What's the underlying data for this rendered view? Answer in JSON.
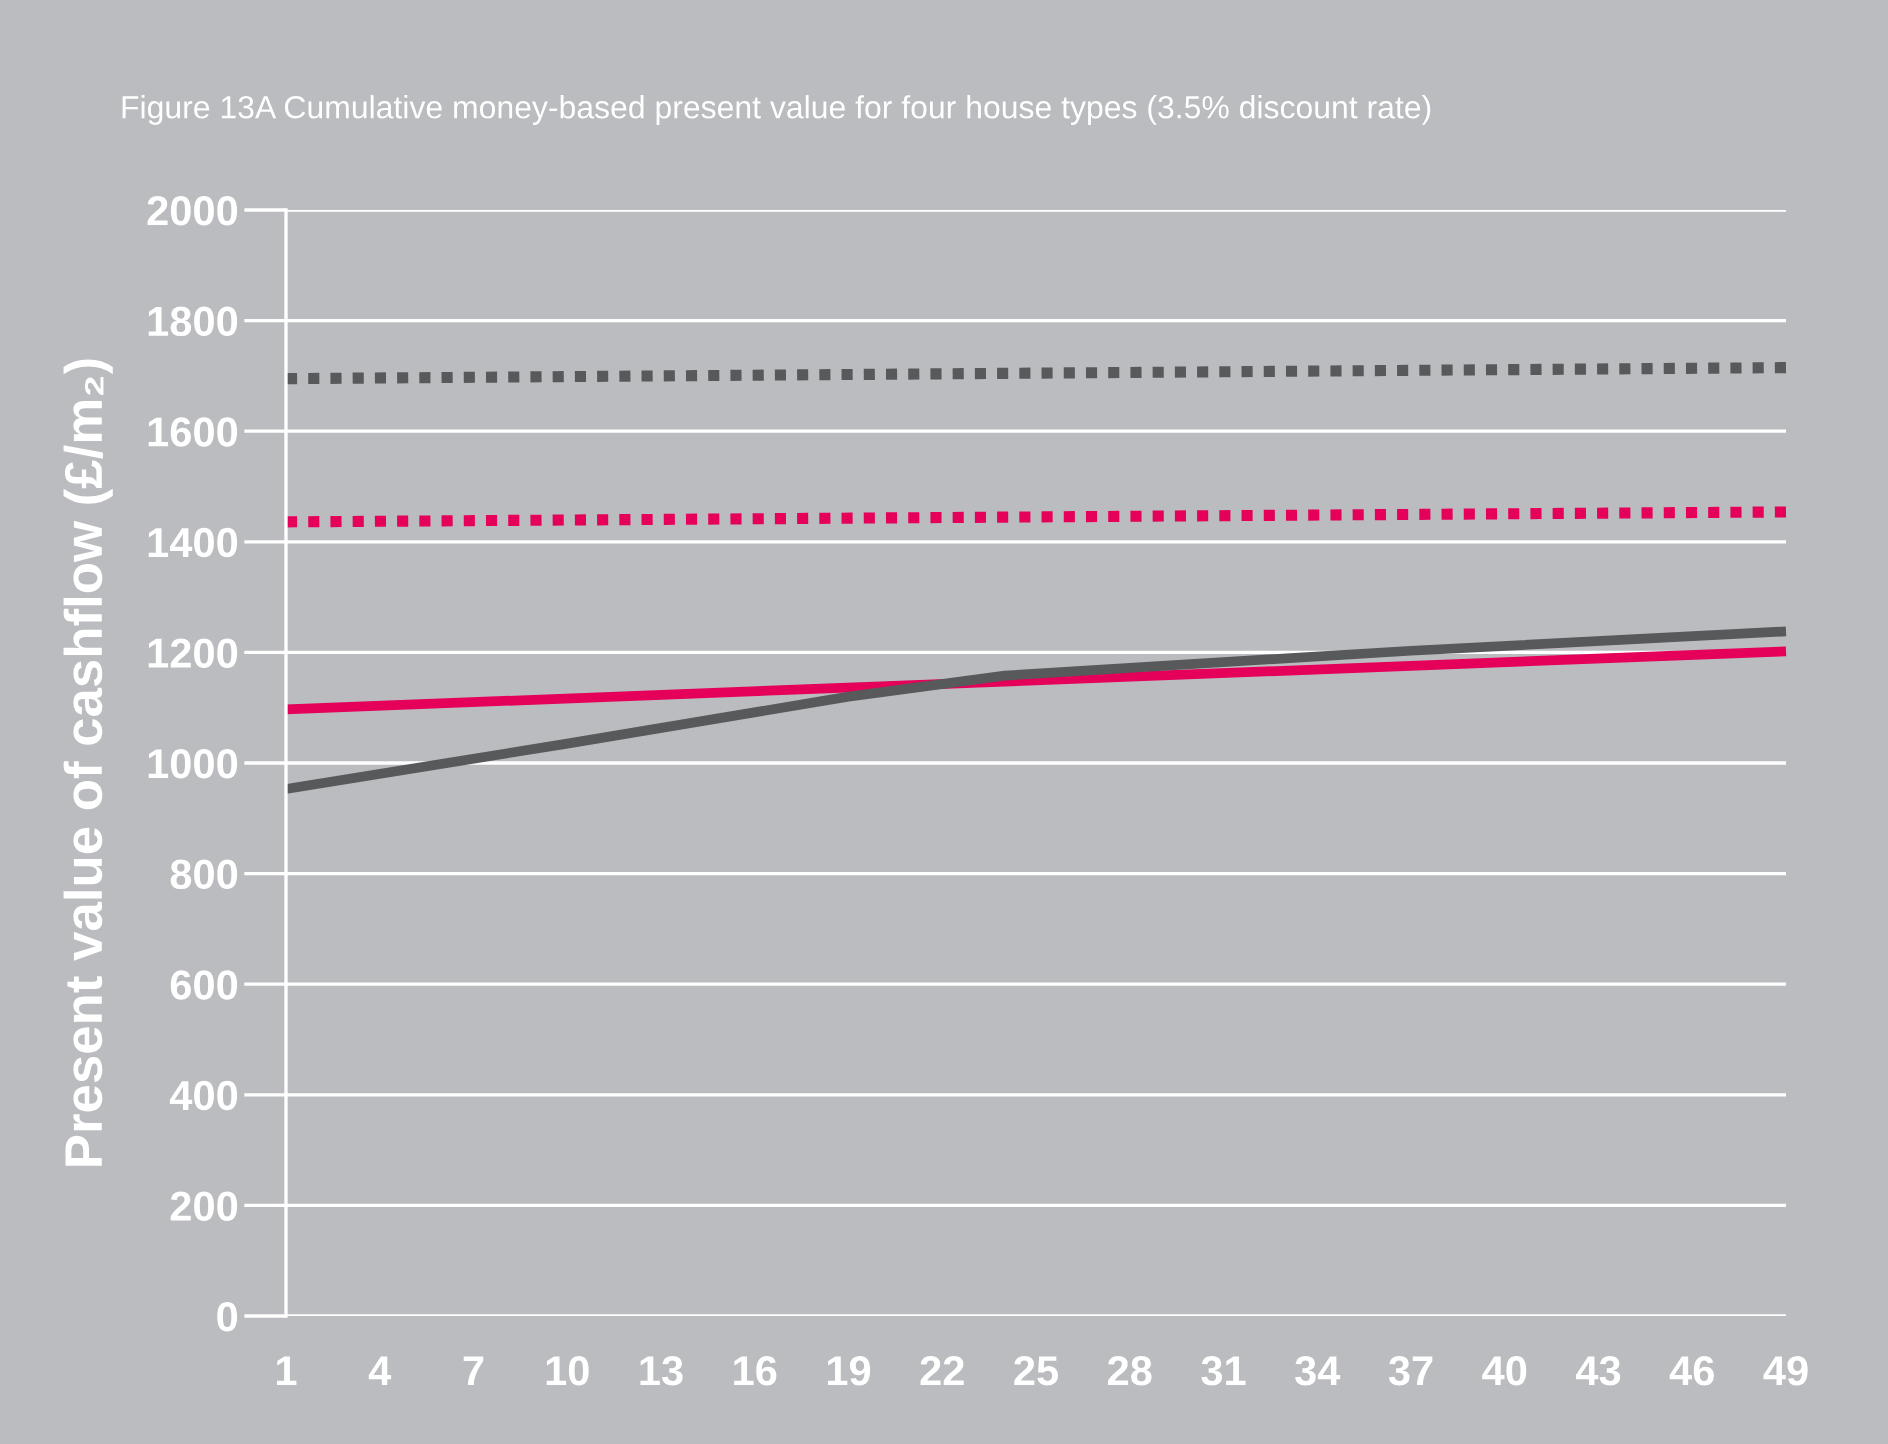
{
  "chart_data": {
    "type": "line",
    "title": "Figure 13A Cumulative money-based present value for four house types (3.5% discount rate)",
    "ylabel": "Present value of cashflow (£/m₂)",
    "xlim": [
      1,
      49
    ],
    "xticks": [
      1,
      4,
      7,
      10,
      13,
      16,
      19,
      22,
      25,
      28,
      31,
      34,
      37,
      40,
      43,
      46,
      49
    ],
    "ylim": [
      0,
      2000
    ],
    "yticks": [
      0,
      200,
      400,
      600,
      800,
      1000,
      1200,
      1400,
      1600,
      1800,
      2000
    ],
    "grid": "y",
    "series": [
      {
        "color": "#58595b",
        "line_style": "dotted",
        "x": [
          1,
          49
        ],
        "values": [
          1695,
          1715
        ]
      },
      {
        "color": "#e5005a",
        "line_style": "dotted",
        "x": [
          1,
          49
        ],
        "values": [
          1436,
          1454
        ]
      },
      {
        "color": "#e5005a",
        "line_style": "solid",
        "x": [
          1,
          49
        ],
        "values": [
          1097,
          1202
        ]
      },
      {
        "color": "#58595b",
        "line_style": "solid",
        "x": [
          1,
          10,
          19,
          24,
          28,
          37,
          49
        ],
        "values": [
          953,
          1035,
          1120,
          1158,
          1172,
          1203,
          1238
        ]
      }
    ]
  }
}
